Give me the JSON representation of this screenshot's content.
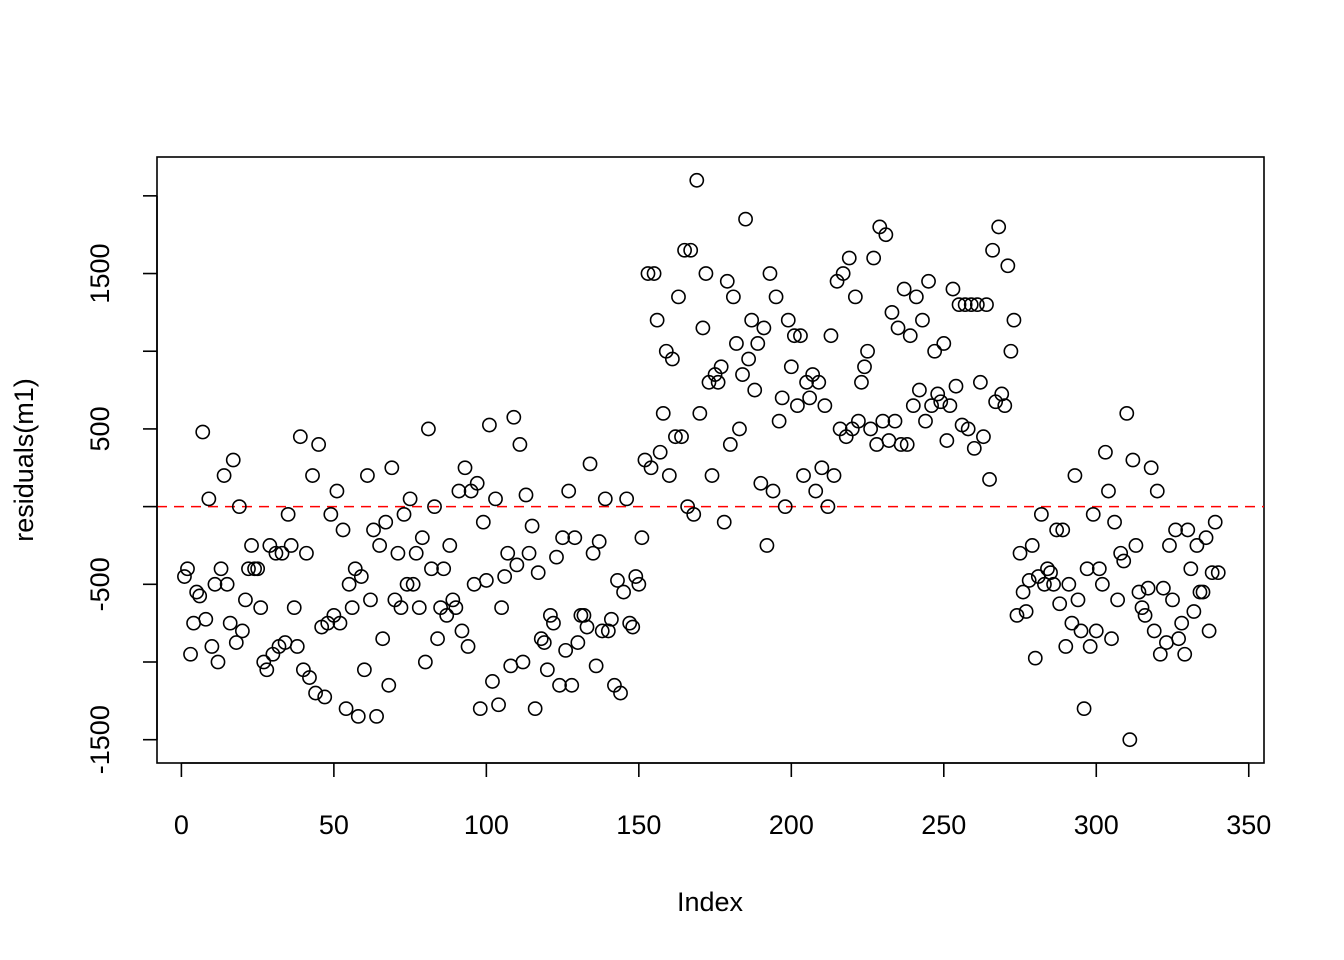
{
  "chart_data": {
    "type": "scatter",
    "xlabel": "Index",
    "ylabel": "residuals(m1)",
    "xlim": [
      -8,
      355
    ],
    "ylim": [
      -1650,
      2250
    ],
    "x_ticks": [
      0,
      50,
      100,
      150,
      200,
      250,
      300,
      350
    ],
    "x_tick_labels": [
      "0",
      "50",
      "100",
      "150",
      "200",
      "250",
      "300",
      "350"
    ],
    "y_ticks": [
      -1500,
      -1000,
      -500,
      0,
      500,
      1000,
      1500,
      2000
    ],
    "y_tick_labels": [
      "-1500",
      "",
      "-500",
      "",
      "500",
      "",
      "1500",
      ""
    ],
    "reference_line": {
      "y": 0,
      "color": "#ff0000",
      "style": "dashed"
    },
    "marker_color": "#000000",
    "grid": false,
    "series": [
      {
        "y": [
          -450,
          -400,
          -950,
          -750,
          -550,
          -575,
          480,
          -725,
          50,
          -900,
          -500,
          -1000,
          -400,
          200,
          -500,
          -750,
          300,
          -875,
          0,
          -800,
          -600,
          -400,
          -250,
          -400,
          -400,
          -650,
          -1000,
          -1050,
          -250,
          -950,
          -300,
          -900,
          -300,
          -875,
          -50,
          -250,
          -650,
          -900,
          450,
          -1050,
          -300,
          -1100,
          200,
          -1200,
          400,
          -775,
          -1225,
          -750,
          -50,
          -700,
          100,
          -750,
          -150,
          -1300,
          -500,
          -650,
          -400,
          -1350,
          -450,
          -1050,
          200,
          -600,
          -150,
          -1350,
          -250,
          -850,
          -100,
          -1150,
          250,
          -600,
          -300,
          -650,
          -50,
          -500,
          50,
          -500,
          -300,
          -650,
          -200,
          -1000,
          500,
          -400,
          0,
          -850,
          -650,
          -400,
          -700,
          -250,
          -600,
          -650,
          100,
          -800,
          250,
          -900,
          100,
          -500,
          150,
          -1300,
          -100,
          -475,
          525,
          -1125,
          50,
          -1275,
          -650,
          -450,
          -300,
          -1025,
          575,
          -375,
          400,
          -1000,
          75,
          -300,
          -125,
          -1300,
          -425,
          -850,
          -875,
          -1050,
          -700,
          -750,
          -325,
          -1150,
          -200,
          -925,
          100,
          -1150,
          -200,
          -875,
          -700,
          -700,
          -775,
          275,
          -300,
          -1025,
          -225,
          -800,
          50,
          -800,
          -725,
          -1150,
          -475,
          -1200,
          -550,
          50,
          -750,
          -775,
          -450,
          -500,
          -200,
          300,
          1500,
          250,
          1500,
          1200,
          350,
          600,
          1000,
          200,
          950,
          450,
          1350,
          450,
          1650,
          0,
          1650,
          -50,
          2100,
          600,
          1150,
          1500,
          800,
          200,
          850,
          800,
          900,
          -100,
          1450,
          400,
          1350,
          1050,
          500,
          850,
          1850,
          950,
          1200,
          750,
          1050,
          150,
          1150,
          -250,
          1500,
          100,
          1350,
          550,
          700,
          0,
          1200,
          900,
          1100,
          650,
          1100,
          200,
          800,
          700,
          850,
          100,
          800,
          250,
          650,
          0,
          1100,
          200,
          1450,
          500,
          1500,
          450,
          1600,
          500,
          1350,
          550,
          800,
          900,
          1000,
          500,
          1600,
          400,
          1800,
          550,
          1750,
          425,
          1250,
          550,
          1150,
          400,
          1400,
          400,
          1100,
          650,
          1350,
          750,
          1200,
          550,
          1450,
          650,
          1000,
          725,
          675,
          1050,
          425,
          650,
          1400,
          775,
          1300,
          525,
          1300,
          500,
          1300,
          375,
          1300,
          800,
          450,
          1300,
          175,
          1650,
          675,
          1800,
          725,
          650,
          1550,
          1000,
          1200,
          -700,
          -300,
          -550,
          -675,
          -475,
          -250,
          -975,
          -450,
          -50,
          -500,
          -400,
          -425,
          -500,
          -150,
          -625,
          -150,
          -900,
          -500,
          -750,
          200,
          -600,
          -800,
          -1300,
          -400,
          -900,
          -50,
          -800,
          -400,
          -500,
          350,
          100,
          -850,
          -100,
          -600,
          -300,
          -350,
          600,
          -1500,
          300,
          -250,
          -550,
          -650,
          -700,
          -525,
          250,
          -800,
          100,
          -950,
          -525,
          -875,
          -250,
          -600,
          -150,
          -850,
          -750,
          -950,
          -150,
          -400,
          -675,
          -250,
          -550,
          -550,
          -200,
          -800,
          -425,
          -100,
          -425
        ]
      }
    ]
  }
}
